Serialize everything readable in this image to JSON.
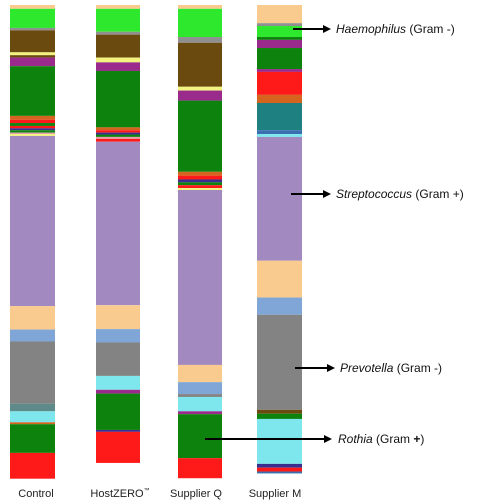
{
  "chart_data": {
    "type": "bar",
    "stacked": true,
    "orientation": "vertical",
    "ylim": [
      0,
      100
    ],
    "categories": [
      "Control",
      "HostZERO",
      "Supplier Q",
      "Supplier M"
    ],
    "category_superscript": [
      "",
      "™",
      "",
      ""
    ],
    "bars": [
      {
        "category": "Control",
        "segments": [
          {
            "color": "#f9cb8f",
            "value": 0.8
          },
          {
            "color": "#2ee82e",
            "value": 4.0
          },
          {
            "color": "#909090",
            "value": 0.5
          },
          {
            "color": "#6b4a10",
            "value": 4.6
          },
          {
            "color": "#f3f37f",
            "value": 0.6
          },
          {
            "color": "#6b4a10",
            "value": 0.5
          },
          {
            "color": "#9a2b8c",
            "value": 1.8
          },
          {
            "color": "#0d830d",
            "value": 10.4
          },
          {
            "color": "#d4641e",
            "value": 0.8
          },
          {
            "color": "#ff1a1a",
            "value": 0.7
          },
          {
            "color": "#0d830d",
            "value": 0.6
          },
          {
            "color": "#ff1a1a",
            "value": 0.5
          },
          {
            "color": "#3a2f8f",
            "value": 0.4
          },
          {
            "color": "#0d830d",
            "value": 0.5
          },
          {
            "color": "#e6a0b0",
            "value": 0.3
          },
          {
            "color": "#f3f37f",
            "value": 0.4
          },
          {
            "color": "#a289c0",
            "value": 35.6
          },
          {
            "color": "#f9cb8f",
            "value": 4.9
          },
          {
            "color": "#7fa6d6",
            "value": 2.5
          },
          {
            "color": "#838383",
            "value": 13.0
          },
          {
            "color": "#5f8a8a",
            "value": 1.6
          },
          {
            "color": "#7ee7ee",
            "value": 2.3
          },
          {
            "color": "#d4641e",
            "value": 0.4
          },
          {
            "color": "#0d830d",
            "value": 6.0
          },
          {
            "color": "#ff1a1a",
            "value": 5.4
          }
        ]
      },
      {
        "category": "HostZERO",
        "segments": [
          {
            "color": "#f9cb8f",
            "value": 0.8
          },
          {
            "color": "#2ee82e",
            "value": 4.8
          },
          {
            "color": "#909090",
            "value": 0.6
          },
          {
            "color": "#6b4a10",
            "value": 4.8
          },
          {
            "color": "#f3f37f",
            "value": 1.0
          },
          {
            "color": "#9a2b8c",
            "value": 1.8
          },
          {
            "color": "#0d830d",
            "value": 11.8
          },
          {
            "color": "#d4641e",
            "value": 0.6
          },
          {
            "color": "#ff1a1a",
            "value": 0.5
          },
          {
            "color": "#3a2f8f",
            "value": 0.4
          },
          {
            "color": "#0d830d",
            "value": 0.5
          },
          {
            "color": "#e6a0b0",
            "value": 0.4
          },
          {
            "color": "#ff1a1a",
            "value": 0.6
          },
          {
            "color": "#a289c0",
            "value": 34.2
          },
          {
            "color": "#f9cb8f",
            "value": 5.0
          },
          {
            "color": "#7fa6d6",
            "value": 2.8
          },
          {
            "color": "#838383",
            "value": 7.0
          },
          {
            "color": "#7ee7ee",
            "value": 2.9
          },
          {
            "color": "#9a2b8c",
            "value": 0.8
          },
          {
            "color": "#0d830d",
            "value": 7.6
          },
          {
            "color": "#3a2f8f",
            "value": 0.4
          },
          {
            "color": "#ff1a1a",
            "value": 6.5
          }
        ]
      },
      {
        "category": "Supplier Q",
        "segments": [
          {
            "color": "#f9cb8f",
            "value": 0.8
          },
          {
            "color": "#2ee82e",
            "value": 5.9
          },
          {
            "color": "#909090",
            "value": 1.2
          },
          {
            "color": "#6b4a10",
            "value": 9.2
          },
          {
            "color": "#f3f37f",
            "value": 0.8
          },
          {
            "color": "#9a2b8c",
            "value": 2.1
          },
          {
            "color": "#0d830d",
            "value": 14.9
          },
          {
            "color": "#d4641e",
            "value": 0.8
          },
          {
            "color": "#ff1a1a",
            "value": 0.8
          },
          {
            "color": "#3a2f8f",
            "value": 0.6
          },
          {
            "color": "#0d830d",
            "value": 0.6
          },
          {
            "color": "#ff1a1a",
            "value": 0.6
          },
          {
            "color": "#f3f37f",
            "value": 0.4
          },
          {
            "color": "#a289c0",
            "value": 36.6
          },
          {
            "color": "#f9cb8f",
            "value": 3.6
          },
          {
            "color": "#7fa6d6",
            "value": 2.5
          },
          {
            "color": "#838383",
            "value": 0.6
          },
          {
            "color": "#7ee7ee",
            "value": 3.0
          },
          {
            "color": "#9a2b8c",
            "value": 0.6
          },
          {
            "color": "#0d830d",
            "value": 9.2
          },
          {
            "color": "#ff1a1a",
            "value": 4.2
          }
        ]
      },
      {
        "category": "Supplier M",
        "segments": [
          {
            "color": "#f9cb8f",
            "value": 3.8
          },
          {
            "color": "#909090",
            "value": 0.6
          },
          {
            "color": "#2ee82e",
            "value": 2.3
          },
          {
            "color": "#0d830d",
            "value": 0.6
          },
          {
            "color": "#9a2b8c",
            "value": 1.7
          },
          {
            "color": "#0d830d",
            "value": 4.4
          },
          {
            "color": "#9a2b8c",
            "value": 0.6
          },
          {
            "color": "#ff1a1a",
            "value": 4.8
          },
          {
            "color": "#d4641e",
            "value": 1.7
          },
          {
            "color": "#1e8080",
            "value": 5.7
          },
          {
            "color": "#3a6fb0",
            "value": 0.8
          },
          {
            "color": "#7ee7ee",
            "value": 0.6
          },
          {
            "color": "#a289c0",
            "value": 25.9
          },
          {
            "color": "#f9cb8f",
            "value": 7.7
          },
          {
            "color": "#7fa6d6",
            "value": 3.6
          },
          {
            "color": "#838383",
            "value": 19.9
          },
          {
            "color": "#6b4a10",
            "value": 0.8
          },
          {
            "color": "#0d830d",
            "value": 1.1
          },
          {
            "color": "#7ee7ee",
            "value": 9.4
          },
          {
            "color": "#3a2f8f",
            "value": 0.8
          },
          {
            "color": "#ff1a1a",
            "value": 0.8
          },
          {
            "color": "#3a6fb0",
            "value": 0.4
          }
        ]
      }
    ],
    "annotations": [
      {
        "name": "Haemophilus",
        "gram": "(Gram -)",
        "gram_sign_bold": false
      },
      {
        "name": "Streptococcus",
        "gram": "(Gram +)",
        "gram_sign_bold": false
      },
      {
        "name": "Prevotella",
        "gram": "(Gram -)",
        "gram_sign_bold": false
      },
      {
        "name": "Rothia",
        "gram": "(Gram ",
        "gram_sign": "+",
        "gram_end": ")",
        "gram_sign_bold": true
      }
    ]
  }
}
